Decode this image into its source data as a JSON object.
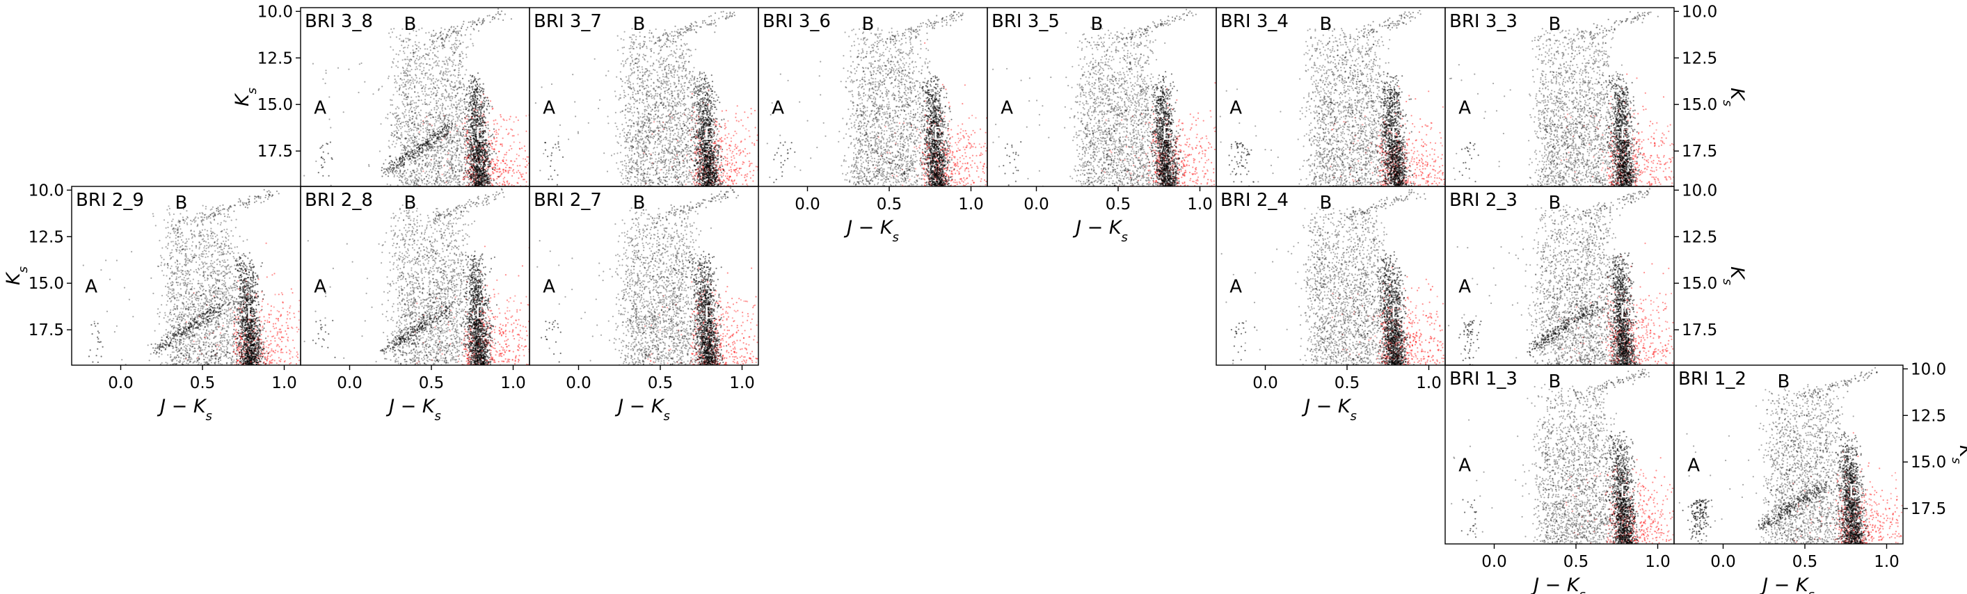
{
  "figure": {
    "x_axis": {
      "label_main": "J − K",
      "label_sub": "s",
      "lim": [
        -0.3,
        1.1
      ],
      "ticks": [
        0.0,
        0.5,
        1.0
      ],
      "tick_labels": [
        "0.0",
        "0.5",
        "1.0"
      ]
    },
    "y_axis": {
      "label_main": "K",
      "label_sub": "s",
      "lim": [
        19.4,
        9.8
      ],
      "inverted": true,
      "ticks": [
        10.0,
        12.5,
        15.0,
        17.5
      ],
      "tick_labels": [
        "10.0",
        "12.5",
        "15.0",
        "17.5"
      ]
    },
    "colors": {
      "stars": "#000000",
      "background": "#ff0000",
      "frame": "#000000"
    }
  },
  "chart_data": [
    {
      "type": "scatter",
      "title": "BRI 3_8",
      "xlabel": "",
      "ylabel": "K_s",
      "region_labels": [
        {
          "text": "A",
          "x": -0.18,
          "y": 15.5
        },
        {
          "text": "B",
          "x": 0.37,
          "y": 11.0
        },
        {
          "text": "D",
          "x": 0.81,
          "y": 16.9
        }
      ]
    },
    {
      "type": "scatter",
      "title": "BRI 3_7",
      "xlabel": "",
      "ylabel": "",
      "region_labels": [
        {
          "text": "A",
          "x": -0.18,
          "y": 15.5
        },
        {
          "text": "B",
          "x": 0.37,
          "y": 11.0
        },
        {
          "text": "D",
          "x": 0.81,
          "y": 16.9
        }
      ]
    },
    {
      "type": "scatter",
      "title": "BRI 3_6",
      "xlabel": "J − K_s",
      "ylabel": "",
      "region_labels": [
        {
          "text": "A",
          "x": -0.18,
          "y": 15.5
        },
        {
          "text": "B",
          "x": 0.37,
          "y": 11.0
        },
        {
          "text": "D",
          "x": 0.81,
          "y": 16.9
        }
      ]
    },
    {
      "type": "scatter",
      "title": "BRI 3_5",
      "xlabel": "J − K_s",
      "ylabel": "",
      "region_labels": [
        {
          "text": "A",
          "x": -0.18,
          "y": 15.5
        },
        {
          "text": "B",
          "x": 0.37,
          "y": 11.0
        },
        {
          "text": "D",
          "x": 0.81,
          "y": 16.9
        }
      ]
    },
    {
      "type": "scatter",
      "title": "BRI 3_4",
      "xlabel": "",
      "ylabel": "",
      "region_labels": [
        {
          "text": "A",
          "x": -0.18,
          "y": 15.5
        },
        {
          "text": "B",
          "x": 0.37,
          "y": 11.0
        },
        {
          "text": "D",
          "x": 0.81,
          "y": 16.9
        }
      ]
    },
    {
      "type": "scatter",
      "title": "BRI 3_3",
      "xlabel": "",
      "ylabel": "K_s",
      "region_labels": [
        {
          "text": "A",
          "x": -0.18,
          "y": 15.5
        },
        {
          "text": "B",
          "x": 0.37,
          "y": 11.0
        },
        {
          "text": "D",
          "x": 0.81,
          "y": 16.9
        }
      ]
    },
    {
      "type": "scatter",
      "title": "BRI 2_9",
      "xlabel": "J − K_s",
      "ylabel": "K_s",
      "region_labels": [
        {
          "text": "A",
          "x": -0.18,
          "y": 15.5
        },
        {
          "text": "B",
          "x": 0.37,
          "y": 11.0
        },
        {
          "text": "D",
          "x": 0.81,
          "y": 16.9
        }
      ]
    },
    {
      "type": "scatter",
      "title": "BRI 2_8",
      "xlabel": "J − K_s",
      "ylabel": "",
      "region_labels": [
        {
          "text": "A",
          "x": -0.18,
          "y": 15.5
        },
        {
          "text": "B",
          "x": 0.37,
          "y": 11.0
        },
        {
          "text": "D",
          "x": 0.81,
          "y": 16.9
        }
      ]
    },
    {
      "type": "scatter",
      "title": "BRI 2_7",
      "xlabel": "J − K_s",
      "ylabel": "",
      "region_labels": [
        {
          "text": "A",
          "x": -0.18,
          "y": 15.5
        },
        {
          "text": "B",
          "x": 0.37,
          "y": 11.0
        },
        {
          "text": "D",
          "x": 0.81,
          "y": 16.9
        }
      ]
    },
    {
      "type": "scatter",
      "title": "BRI 2_4",
      "xlabel": "J − K_s",
      "ylabel": "",
      "region_labels": [
        {
          "text": "A",
          "x": -0.18,
          "y": 15.5
        },
        {
          "text": "B",
          "x": 0.37,
          "y": 11.0
        },
        {
          "text": "D",
          "x": 0.81,
          "y": 16.9
        }
      ]
    },
    {
      "type": "scatter",
      "title": "BRI 2_3",
      "xlabel": "",
      "ylabel": "K_s",
      "region_labels": [
        {
          "text": "A",
          "x": -0.18,
          "y": 15.5
        },
        {
          "text": "B",
          "x": 0.37,
          "y": 11.0
        },
        {
          "text": "D",
          "x": 0.81,
          "y": 16.9
        }
      ]
    },
    {
      "type": "scatter",
      "title": "BRI 1_3",
      "xlabel": "J − K_s",
      "ylabel": "",
      "region_labels": [
        {
          "text": "A",
          "x": -0.18,
          "y": 15.5
        },
        {
          "text": "B",
          "x": 0.37,
          "y": 11.0
        },
        {
          "text": "D",
          "x": 0.81,
          "y": 16.9
        }
      ]
    },
    {
      "type": "scatter",
      "title": "BRI 1_2",
      "xlabel": "J − K_s",
      "ylabel": "K_s",
      "region_labels": [
        {
          "text": "A",
          "x": -0.18,
          "y": 15.5
        },
        {
          "text": "B",
          "x": 0.37,
          "y": 11.0
        },
        {
          "text": "D",
          "x": 0.81,
          "y": 16.9
        }
      ]
    }
  ]
}
